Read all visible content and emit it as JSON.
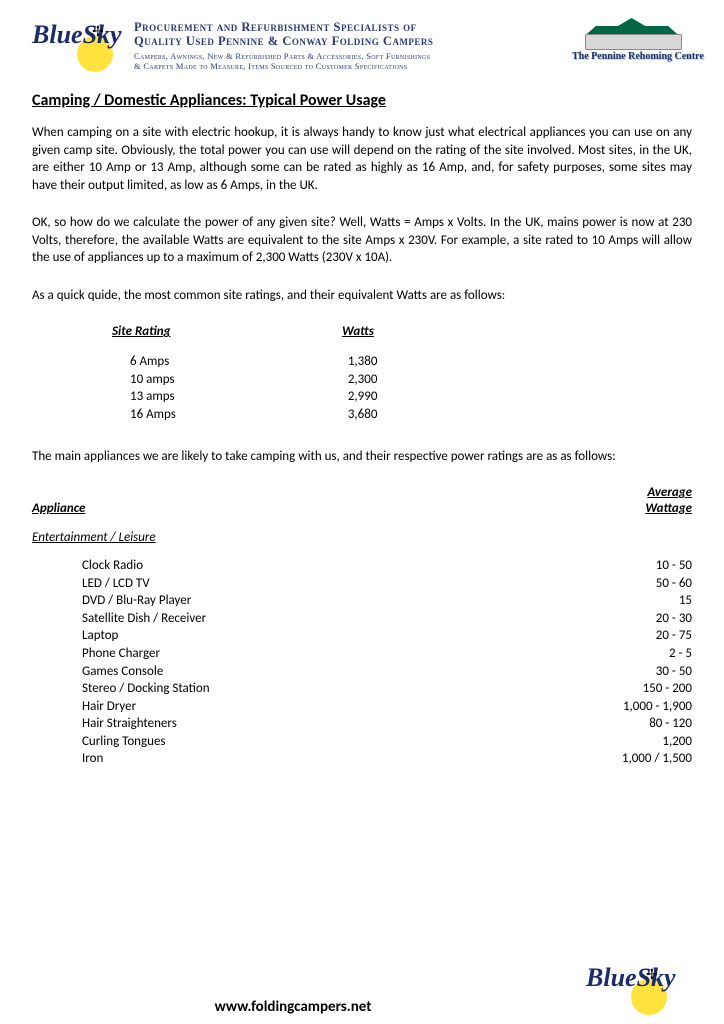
{
  "brand": {
    "logo_text": "BlueSky",
    "sun_color": "#ffe23d",
    "script_color": "#1a2b6b"
  },
  "header": {
    "title_line1": "Procurement and Refurbishment Specialists of",
    "title_line2": "Quality Used Pennine & Conway Folding Campers",
    "sub_line1": "Campers, Awnings, New & Refurbished Parts & Accessories, Soft Furnishings",
    "sub_line2": "& Carpets Made to Measure, Items Sourced to Customer Specifications",
    "camper_tag": "The Pennine Rehoming Centre"
  },
  "title": "Camping / Domestic Appliances: Typical Power Usage",
  "paragraphs": {
    "p1": "When camping on a site with electric hookup, it is always handy to know just what electrical appliances you can use on any given camp site. Obviously, the total power you can use will depend on the rating of the site involved. Most sites, in the UK, are either 10 Amp or 13 Amp, although some can be rated as highly as 16 Amp, and, for safety purposes, some sites may have their output limited, as low as 6 Amps, in the UK.",
    "p2": "OK, so how do we calculate the power of any given site? Well, Watts = Amps x Volts. In the UK, mains power is now at 230 Volts, therefore, the available Watts are equivalent to the site Amps x 230V. For example, a site rated to 10 Amps will allow the use of appliances up to a maximum of 2,300 Watts (230V x 10A).",
    "p3": "As a quick quide, the most common site ratings, and their equivalent Watts are as follows:",
    "p4": "The main appliances we are likely to take camping with us, and their respective power ratings are as as follows:"
  },
  "site_table": {
    "headers": {
      "rating": "Site Rating",
      "watts": "Watts"
    },
    "rows": [
      {
        "rating": "6 Amps",
        "watts": "1,380"
      },
      {
        "rating": "10 amps",
        "watts": "2,300"
      },
      {
        "rating": "13 amps",
        "watts": "2,990"
      },
      {
        "rating": "16 Amps",
        "watts": "3,680"
      }
    ]
  },
  "appliance_headers": {
    "appliance": "Appliance",
    "avg1": "Average",
    "avg2": "Wattage"
  },
  "category": "Entertainment / Leisure",
  "appliances": [
    {
      "name": "Clock Radio",
      "watts": "10 - 50"
    },
    {
      "name": "LED / LCD TV",
      "watts": "50 - 60"
    },
    {
      "name": "DVD / Blu-Ray Player",
      "watts": "15"
    },
    {
      "name": "Satellite Dish / Receiver",
      "watts": "20 - 30"
    },
    {
      "name": "Laptop",
      "watts": "20 - 75"
    },
    {
      "name": "Phone Charger",
      "watts": "2 - 5"
    },
    {
      "name": "Games Console",
      "watts": "30 - 50"
    },
    {
      "name": "Stereo / Docking Station",
      "watts": "150 - 200"
    },
    {
      "name": "Hair Dryer",
      "watts": "1,000 - 1,900"
    },
    {
      "name": "Hair Straighteners",
      "watts": "80 - 120"
    },
    {
      "name": "Curling Tongues",
      "watts": "1,200"
    },
    {
      "name": "Iron",
      "watts": "1,000 / 1,500"
    }
  ],
  "footer": {
    "url": "www.foldingcampers.net"
  }
}
